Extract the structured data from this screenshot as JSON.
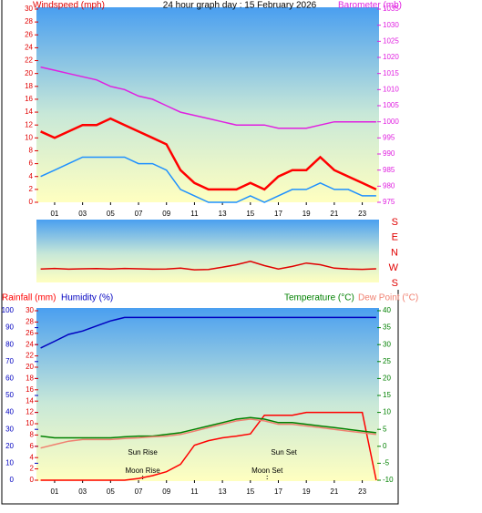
{
  "chart_data": [
    {
      "type": "line",
      "title": "24 hour graph day : 15 February 2026",
      "y_label": "Windspeed (mph)",
      "y2_label": "Barometer (mb)",
      "xlim": [
        -0.3,
        24.2
      ],
      "xticks": [
        {
          "value": 1,
          "label": "01"
        },
        {
          "value": 3,
          "label": "03"
        },
        {
          "value": 5,
          "label": "05"
        },
        {
          "value": 7,
          "label": "07"
        },
        {
          "value": 9,
          "label": "09"
        },
        {
          "value": 11,
          "label": "11"
        },
        {
          "value": 13,
          "label": "13"
        },
        {
          "value": 15,
          "label": "15"
        },
        {
          "value": 17,
          "label": "17"
        },
        {
          "value": 19,
          "label": "19"
        },
        {
          "value": 21,
          "label": "21"
        },
        {
          "value": 23,
          "label": "23"
        }
      ],
      "ylim": [
        0,
        30
      ],
      "yticks": [
        0,
        2,
        4,
        6,
        8,
        10,
        12,
        14,
        16,
        18,
        20,
        22,
        24,
        26,
        28,
        30
      ],
      "y2lim": [
        975,
        1035
      ],
      "y2ticks": [
        975,
        980,
        985,
        990,
        995,
        1000,
        1005,
        1010,
        1015,
        1020,
        1025,
        1030,
        1035
      ],
      "x": [
        0,
        1,
        2,
        3,
        4,
        5,
        6,
        7,
        8,
        9,
        10,
        11,
        12,
        13,
        14,
        15,
        16,
        17,
        18,
        19,
        20,
        21,
        22,
        23,
        24
      ],
      "series": [
        {
          "color": "#ff0000",
          "values": [
            11,
            10,
            11,
            12,
            12,
            13,
            12,
            11,
            10,
            9,
            5,
            3,
            2,
            2,
            2,
            3,
            2,
            4,
            5,
            5,
            7,
            5,
            4,
            3,
            2
          ]
        },
        {
          "color": "#1e90ff",
          "values": [
            4,
            5,
            6,
            7,
            7,
            7,
            7,
            6,
            6,
            5,
            2,
            1,
            0,
            0,
            0,
            1,
            0,
            1,
            2,
            2,
            3,
            2,
            2,
            1,
            1
          ]
        },
        {
          "color": "#e020e0",
          "axis": "y2",
          "values": [
            1017,
            1016,
            1015,
            1014,
            1013,
            1011,
            1010,
            1008,
            1007,
            1005,
            1003,
            1002,
            1001,
            1000,
            999,
            999,
            999,
            998,
            998,
            998,
            999,
            1000,
            1000,
            1000,
            1000
          ]
        }
      ]
    },
    {
      "type": "line",
      "xlim": [
        -0.3,
        24.2
      ],
      "ylim": [
        -180,
        180
      ],
      "yticks": [
        {
          "value": 180,
          "label": "S"
        },
        {
          "value": 90,
          "label": "E"
        },
        {
          "value": 0,
          "label": "N"
        },
        {
          "value": -90,
          "label": "W"
        },
        {
          "value": -180,
          "label": "S"
        }
      ],
      "x": [
        0,
        1,
        2,
        3,
        4,
        5,
        6,
        7,
        8,
        9,
        10,
        11,
        12,
        13,
        14,
        15,
        16,
        17,
        18,
        19,
        20,
        21,
        22,
        23,
        24
      ],
      "series": [
        {
          "color": "#e00000",
          "values": [
            -95,
            -92,
            -96,
            -94,
            -93,
            -95,
            -92,
            -94,
            -96,
            -95,
            -90,
            -100,
            -98,
            -85,
            -70,
            -50,
            -75,
            -95,
            -80,
            -60,
            -70,
            -90,
            -95,
            -97,
            -94
          ]
        }
      ]
    },
    {
      "type": "line",
      "xlim": [
        -0.3,
        24.2
      ],
      "xticks": [
        {
          "value": 1,
          "label": "01"
        },
        {
          "value": 3,
          "label": "03"
        },
        {
          "value": 5,
          "label": "05"
        },
        {
          "value": 7,
          "label": "07"
        },
        {
          "value": 9,
          "label": "09"
        },
        {
          "value": 11,
          "label": "11"
        },
        {
          "value": 13,
          "label": "13"
        },
        {
          "value": 15,
          "label": "15"
        },
        {
          "value": 17,
          "label": "17"
        },
        {
          "value": 19,
          "label": "19"
        },
        {
          "value": 21,
          "label": "21"
        },
        {
          "value": 23,
          "label": "23"
        }
      ],
      "ylim": [
        0,
        100
      ],
      "yticks": [
        0,
        10,
        20,
        30,
        40,
        50,
        60,
        70,
        80,
        90,
        100
      ],
      "y3lim": [
        0,
        30
      ],
      "y3ticks": [
        0,
        2,
        4,
        6,
        8,
        10,
        12,
        14,
        16,
        18,
        20,
        22,
        24,
        26,
        28,
        30
      ],
      "y2lim": [
        -10,
        40
      ],
      "y2ticks": [
        -10,
        -5,
        0,
        5,
        10,
        15,
        20,
        25,
        30,
        35,
        40
      ],
      "x": [
        0,
        1,
        2,
        3,
        4,
        5,
        6,
        7,
        8,
        9,
        10,
        11,
        12,
        13,
        14,
        15,
        16,
        17,
        18,
        19,
        20,
        21,
        22,
        23,
        24
      ],
      "series": [
        {
          "name": "Rainfall (mm)",
          "color": "#ff0000",
          "axis": "y3",
          "values": [
            0,
            0,
            0,
            0,
            0,
            0,
            0,
            0.3,
            0.8,
            1.5,
            2.8,
            6.2,
            7,
            7.5,
            7.8,
            8.2,
            11.5,
            11.5,
            11.5,
            12,
            12,
            12,
            12,
            12,
            0
          ]
        },
        {
          "name": "Humidity (%)",
          "color": "#0000c0",
          "values": [
            78,
            82,
            86,
            88,
            91,
            94,
            96,
            96,
            96,
            96,
            96,
            96,
            96,
            96,
            96,
            96,
            96,
            96,
            96,
            96,
            96,
            96,
            96,
            96,
            96
          ]
        },
        {
          "name": "Temperature (°C)",
          "color": "#008000",
          "axis": "y2",
          "values": [
            3,
            2.5,
            2.5,
            2.5,
            2.5,
            2.5,
            2.8,
            3,
            3,
            3.5,
            4,
            5,
            6,
            7,
            8,
            8.5,
            8,
            7,
            7,
            6.5,
            6,
            5.5,
            5,
            4.5,
            4
          ]
        },
        {
          "name": "Dew Point (°C)",
          "color": "#f08070",
          "axis": "y2",
          "values": [
            -0.5,
            0.5,
            1.5,
            2,
            2,
            2,
            2.3,
            2.5,
            2.8,
            3,
            3.5,
            4.5,
            5.5,
            6.5,
            7.5,
            8,
            7.5,
            6.5,
            6.5,
            6,
            5.5,
            5,
            4.5,
            4,
            3.5
          ]
        }
      ],
      "annotations": [
        {
          "text": "Sun Rise",
          "x": 7.3
        },
        {
          "text": "Sun Set",
          "x": 17.4
        },
        {
          "text": "Moon Rise",
          "x": 7.3
        },
        {
          "text": "Moon Set",
          "x": 16.2
        }
      ]
    }
  ]
}
